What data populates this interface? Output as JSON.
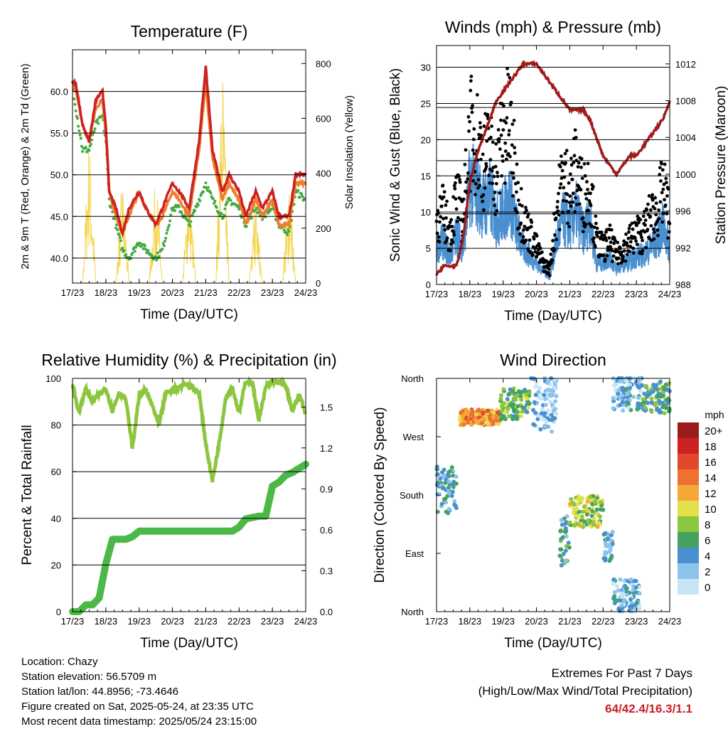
{
  "colors": {
    "t9m": "#cc2222",
    "t2m": "#f07c2c",
    "td": "#44aa44",
    "solar": "#f5d44a",
    "sonic": "#4a90d0",
    "gust": "#000000",
    "pressure": "#a01c1c",
    "rh": "#8cc63e",
    "precip": "#4cb848",
    "extremes": "#c8202a"
  },
  "x_ticks": [
    "17/23",
    "18/23",
    "19/23",
    "20/23",
    "21/23",
    "22/23",
    "23/23",
    "24/23"
  ],
  "chart_data": [
    {
      "type": "line",
      "title": "Temperature (F)",
      "xlabel": "Time (Day/UTC)",
      "ylabel": "2m & 9m T (Red, Orange) & 2m Td (Green)",
      "y2label": "Solar Insolation (Yellow)",
      "ylim": [
        37,
        65
      ],
      "yticks": [
        "40.0",
        "45.0",
        "50.0",
        "55.0",
        "60.0"
      ],
      "y2lim": [
        0,
        850
      ],
      "y2ticks": [
        "0",
        "200",
        "400",
        "600",
        "800"
      ],
      "grid": true,
      "x_days": [
        0,
        0.1,
        0.3,
        0.5,
        0.7,
        0.9,
        1.0,
        1.1,
        1.3,
        1.5,
        1.7,
        2.0,
        2.2,
        2.5,
        2.7,
        3.0,
        3.2,
        3.5,
        3.8,
        4.0,
        4.2,
        4.5,
        4.7,
        5.0,
        5.2,
        5.5,
        5.7,
        6.0,
        6.2,
        6.5,
        6.7,
        7.0
      ],
      "series": [
        {
          "name": "9m T",
          "values": [
            61,
            61,
            56,
            54,
            59,
            60,
            56,
            48,
            46,
            43,
            46,
            48,
            46,
            44,
            46,
            49,
            48,
            46,
            54,
            63,
            53,
            48,
            50,
            48,
            45,
            48,
            46,
            48,
            45,
            45,
            50,
            50
          ]
        },
        {
          "name": "2m T",
          "values": [
            61,
            60,
            56,
            54,
            58,
            59,
            55,
            48,
            45,
            43,
            45,
            48,
            46,
            44,
            45,
            48,
            47,
            45,
            53,
            61,
            52,
            47,
            49,
            47,
            44,
            47,
            45,
            47,
            44,
            44,
            49,
            49
          ]
        },
        {
          "name": "2m Td",
          "values": [
            61,
            58,
            53,
            53,
            56,
            57,
            54,
            47,
            44,
            41,
            40,
            42,
            41,
            40,
            41,
            46,
            46,
            44,
            47,
            49,
            47,
            45,
            47,
            46,
            44,
            46,
            45,
            46,
            44,
            43,
            48,
            47
          ]
        }
      ],
      "solar": {
        "name": "Solar Insolation",
        "days": [
          0.3,
          0.5,
          0.7,
          1.3,
          1.5,
          1.7,
          2.3,
          2.5,
          2.7,
          3.3,
          3.5,
          3.7,
          4.3,
          4.5,
          4.7,
          5.3,
          5.5,
          5.7,
          6.3,
          6.5,
          6.7
        ],
        "values": [
          0,
          580,
          0,
          0,
          400,
          0,
          0,
          430,
          0,
          0,
          420,
          0,
          0,
          850,
          0,
          0,
          320,
          0,
          0,
          400,
          0
        ]
      }
    },
    {
      "type": "scatter",
      "title": "Winds (mph) & Pressure (mb)",
      "xlabel": "Time (Day/UTC)",
      "ylabel": "Sonic Wind & Gust (Blue, Black)",
      "y2label": "Station Pressure (Maroon)",
      "ylim": [
        0,
        33
      ],
      "yticks": [
        "0",
        "5",
        "10",
        "15",
        "20",
        "25",
        "30"
      ],
      "y2lim": [
        988,
        1014
      ],
      "y2ticks": [
        "988",
        "992",
        "996",
        "1000",
        "1004",
        "1008",
        "1012"
      ],
      "grid": true,
      "x_days": [
        0,
        0.2,
        0.4,
        0.6,
        0.8,
        1.0,
        1.2,
        1.4,
        1.6,
        1.8,
        2.0,
        2.2,
        2.4,
        2.6,
        2.8,
        3.0,
        3.2,
        3.4,
        3.6,
        3.8,
        4.0,
        4.2,
        4.4,
        4.6,
        4.8,
        5.0,
        5.2,
        5.4,
        5.6,
        5.8,
        6.0,
        6.2,
        6.4,
        6.6,
        6.8,
        7.0
      ],
      "series": [
        {
          "name": "Sonic Wind",
          "values": [
            5,
            6,
            4,
            7,
            5,
            14,
            13,
            11,
            12,
            9,
            10,
            12,
            8,
            5,
            4,
            3,
            2,
            1,
            6,
            9,
            8,
            10,
            7,
            9,
            3,
            3,
            4,
            2,
            3,
            3,
            4,
            4,
            5,
            6,
            8,
            5
          ]
        },
        {
          "name": "Gust",
          "values": [
            9,
            10,
            7,
            12,
            9,
            21,
            20,
            17,
            18,
            15,
            21,
            22,
            13,
            9,
            7,
            5,
            3,
            2,
            10,
            15,
            13,
            16,
            12,
            14,
            6,
            5,
            6,
            4,
            5,
            6,
            7,
            7,
            9,
            10,
            13,
            9
          ]
        }
      ],
      "pressure": {
        "name": "Station Pressure",
        "days": [
          0,
          0.2,
          0.4,
          0.6,
          0.8,
          1.0,
          1.2,
          1.4,
          1.6,
          1.8,
          2.0,
          2.2,
          2.4,
          2.6,
          2.8,
          3.0,
          3.2,
          3.4,
          3.6,
          3.8,
          4.0,
          4.2,
          4.4,
          4.6,
          4.8,
          5.0,
          5.2,
          5.4,
          5.6,
          5.8,
          6.0,
          6.2,
          6.4,
          6.6,
          6.8,
          7.0
        ],
        "values": [
          989,
          990,
          990,
          990,
          993,
          999,
          1002,
          1004,
          1006,
          1008,
          1009,
          1010,
          1011,
          1012,
          1012,
          1012,
          1011,
          1010,
          1009,
          1008,
          1007,
          1007,
          1007,
          1006,
          1004,
          1002,
          1001,
          1000,
          1001,
          1002,
          1002,
          1003,
          1004,
          1005,
          1006,
          1008
        ]
      }
    },
    {
      "type": "line",
      "title": "Relative Humidity (%) & Precipitation (in)",
      "xlabel": "Time (Day/UTC)",
      "ylabel": "Percent & Total Rainfall",
      "ylim": [
        0,
        100
      ],
      "yticks": [
        "0",
        "20",
        "40",
        "60",
        "80",
        "100"
      ],
      "y2lim": [
        0,
        1.71
      ],
      "y2ticks": [
        "0.0",
        "0.3",
        "0.6",
        "0.9",
        "1.2",
        "1.5"
      ],
      "grid": true,
      "x_days": [
        0,
        0.2,
        0.4,
        0.6,
        0.8,
        1.0,
        1.2,
        1.4,
        1.6,
        1.8,
        2.0,
        2.2,
        2.4,
        2.6,
        2.8,
        3.0,
        3.2,
        3.4,
        3.6,
        3.8,
        4.0,
        4.2,
        4.4,
        4.6,
        4.8,
        5.0,
        5.2,
        5.4,
        5.6,
        5.8,
        6.0,
        6.2,
        6.4,
        6.6,
        6.8,
        7.0
      ],
      "series": [
        {
          "name": "Relative Humidity",
          "values": [
            97,
            85,
            96,
            90,
            93,
            96,
            86,
            94,
            91,
            70,
            93,
            95,
            88,
            80,
            94,
            95,
            96,
            98,
            96,
            94,
            72,
            56,
            72,
            92,
            96,
            85,
            99,
            98,
            82,
            96,
            99,
            98,
            97,
            86,
            93,
            85
          ]
        },
        {
          "name": "Total Precipitation",
          "values": [
            0,
            0,
            0.05,
            0.05,
            0.1,
            0.35,
            0.53,
            0.53,
            0.53,
            0.55,
            0.59,
            0.59,
            0.59,
            0.59,
            0.59,
            0.59,
            0.59,
            0.59,
            0.59,
            0.59,
            0.59,
            0.59,
            0.59,
            0.59,
            0.59,
            0.62,
            0.68,
            0.69,
            0.7,
            0.7,
            0.92,
            0.95,
            1.0,
            1.02,
            1.05,
            1.08
          ]
        }
      ]
    },
    {
      "type": "scatter",
      "title": "Wind Direction",
      "xlabel": "Time (Day/UTC)",
      "ylabel": "Direction (Colored By Speed)",
      "ylim": [
        0,
        360
      ],
      "yticks": [
        "North",
        "East",
        "South",
        "West",
        "North"
      ],
      "grid": true,
      "colorbar": {
        "title": "mph",
        "labels": [
          "0",
          "2",
          "4",
          "6",
          "8",
          "10",
          "12",
          "14",
          "16",
          "18",
          "20+"
        ],
        "colors": [
          "#c6e6f8",
          "#8cc4ec",
          "#4a90d0",
          "#44a260",
          "#8cc63e",
          "#e3e04a",
          "#f5a83a",
          "#f07030",
          "#e04a2a",
          "#cc2222",
          "#9b1c1c"
        ]
      },
      "groups": [
        {
          "start": 0.0,
          "end": 0.6,
          "dir": 190,
          "spread": 40,
          "speed": 4
        },
        {
          "start": 0.7,
          "end": 1.9,
          "dir": 300,
          "spread": 12,
          "speed": 13
        },
        {
          "start": 1.9,
          "end": 2.8,
          "dir": 320,
          "spread": 25,
          "speed": 7
        },
        {
          "start": 2.8,
          "end": 3.6,
          "dir": 320,
          "spread": 45,
          "speed": 2
        },
        {
          "start": 3.7,
          "end": 4.0,
          "dir": 110,
          "spread": 40,
          "speed": 5
        },
        {
          "start": 4.0,
          "end": 5.0,
          "dir": 155,
          "spread": 25,
          "speed": 9
        },
        {
          "start": 5.0,
          "end": 5.3,
          "dir": 100,
          "spread": 25,
          "speed": 4
        },
        {
          "start": 5.3,
          "end": 6.1,
          "dir": 25,
          "spread": 25,
          "speed": 3
        },
        {
          "start": 5.3,
          "end": 6.2,
          "dir": 340,
          "spread": 30,
          "speed": 3
        },
        {
          "start": 6.2,
          "end": 7.0,
          "dir": 330,
          "spread": 25,
          "speed": 6
        }
      ]
    }
  ],
  "info": {
    "location": "Location: Chazy",
    "elevation": "Station elevation: 56.5709 m",
    "latlon": "Station lat/lon: 44.8956; -73.4646",
    "created": "Figure created on Sat, 2025-05-24, at 23:35 UTC",
    "timestamp": "Most recent data timestamp: 2025/05/24 23:15:00"
  },
  "extremes": {
    "title": "Extremes For Past 7 Days",
    "subtitle": "(High/Low/Max Wind/Total Precipitation)",
    "values": "64/42.4/16.3/1.1"
  }
}
